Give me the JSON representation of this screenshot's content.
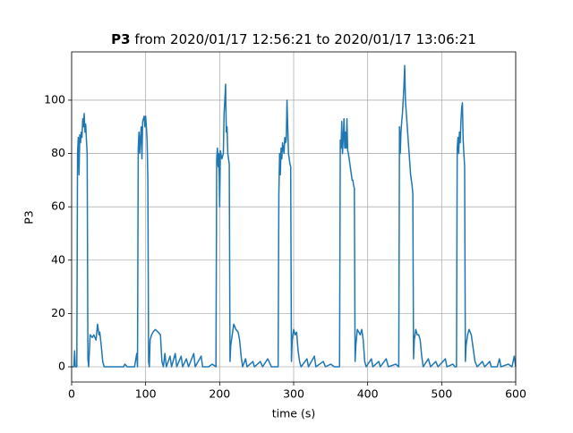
{
  "chart_data": {
    "type": "line",
    "title": [
      "P3",
      "from 2020/01/17 12:56:21 to 2020/01/17 13:06:21"
    ],
    "xlabel": "time (s)",
    "ylabel": "P3",
    "color": "#1f77b4",
    "grid": true,
    "xlim": [
      0,
      600
    ],
    "xticks": [
      0,
      100,
      200,
      300,
      400,
      500,
      600
    ],
    "ylim": [
      -5.7,
      118.1
    ],
    "yticks": [
      0,
      20,
      40,
      60,
      80,
      100
    ],
    "x": [
      0,
      3,
      4,
      5,
      7,
      8,
      9,
      10,
      11,
      12,
      13,
      14,
      15,
      16,
      17,
      18,
      19,
      20,
      21,
      22,
      23,
      25,
      28,
      30,
      33,
      35,
      37,
      38,
      40,
      42,
      44,
      50,
      60,
      70,
      72,
      75,
      85,
      88,
      89,
      90,
      91,
      92,
      93,
      94,
      95,
      96,
      97,
      98,
      99,
      100,
      101,
      102,
      103,
      104,
      105,
      106,
      108,
      110,
      113,
      117,
      120,
      122,
      124,
      126,
      128,
      133,
      135,
      140,
      142,
      148,
      150,
      155,
      158,
      165,
      167,
      175,
      177,
      185,
      190,
      195,
      196,
      197,
      198,
      199,
      200,
      201,
      203,
      205,
      206,
      207,
      208,
      209,
      210,
      211,
      212,
      213,
      214,
      215,
      217,
      219,
      222,
      225,
      227,
      229,
      231,
      235,
      237,
      245,
      247,
      255,
      258,
      265,
      270,
      276,
      279,
      280,
      281,
      282,
      283,
      284,
      285,
      286,
      287,
      288,
      289,
      290,
      291,
      292,
      293,
      294,
      295,
      296,
      297,
      298,
      300,
      302,
      304,
      306,
      308,
      310,
      318,
      320,
      328,
      330,
      340,
      343,
      350,
      355,
      362,
      363,
      364,
      365,
      366,
      367,
      368,
      369,
      370,
      371,
      372,
      373,
      374,
      375,
      376,
      377,
      378,
      379,
      380,
      381,
      382,
      383,
      384,
      386,
      388,
      390,
      392,
      394,
      396,
      398,
      405,
      407,
      415,
      417,
      425,
      428,
      438,
      442,
      443,
      444,
      445,
      446,
      447,
      448,
      449,
      450,
      451,
      452,
      453,
      454,
      455,
      456,
      457,
      458,
      459,
      460,
      461,
      462,
      463,
      465,
      467,
      469,
      471,
      473,
      475,
      482,
      485,
      492,
      495,
      505,
      507,
      515,
      518,
      520,
      521,
      522,
      523,
      524,
      525,
      526,
      527,
      528,
      529,
      530,
      531,
      532,
      533,
      535,
      537,
      540,
      543,
      545,
      548,
      555,
      558,
      565,
      567,
      575,
      578,
      580,
      590,
      595,
      598,
      600
    ],
    "values": [
      0,
      0,
      6,
      0,
      0,
      80,
      86,
      72,
      87,
      84,
      88,
      86,
      93,
      90,
      95,
      88,
      91,
      85,
      80,
      3,
      0,
      12,
      11,
      12,
      10,
      16,
      12,
      13,
      8,
      2,
      0,
      0,
      0,
      0,
      1,
      0,
      0,
      5,
      0,
      82,
      88,
      80,
      86,
      90,
      78,
      92,
      93,
      94,
      90,
      94,
      90,
      85,
      70,
      2,
      0,
      10,
      12,
      13,
      14,
      13,
      12,
      2,
      0,
      5,
      0,
      4,
      0,
      5,
      0,
      4,
      0,
      3,
      0,
      5,
      0,
      4,
      0,
      0,
      1,
      0,
      78,
      82,
      75,
      80,
      60,
      81,
      78,
      80,
      95,
      100,
      106,
      88,
      90,
      80,
      78,
      76,
      2,
      8,
      12,
      16,
      14,
      13,
      10,
      4,
      0,
      3,
      0,
      2,
      0,
      2,
      0,
      3,
      0,
      0,
      0,
      65,
      80,
      72,
      82,
      78,
      84,
      82,
      80,
      86,
      84,
      85,
      100,
      90,
      80,
      78,
      76,
      75,
      2,
      10,
      14,
      12,
      13,
      6,
      2,
      0,
      3,
      0,
      4,
      0,
      2,
      0,
      1,
      0,
      0,
      85,
      82,
      92,
      80,
      86,
      93,
      82,
      88,
      82,
      93,
      81,
      80,
      78,
      76,
      74,
      72,
      70,
      70,
      68,
      67,
      2,
      8,
      14,
      13,
      12,
      14,
      10,
      2,
      0,
      3,
      0,
      2,
      0,
      3,
      0,
      1,
      0,
      90,
      80,
      88,
      92,
      95,
      100,
      105,
      113,
      100,
      96,
      92,
      88,
      84,
      80,
      76,
      72,
      70,
      68,
      65,
      3,
      10,
      14,
      12,
      12,
      10,
      4,
      0,
      3,
      0,
      2,
      0,
      3,
      0,
      1,
      0,
      0,
      82,
      86,
      80,
      88,
      84,
      92,
      97,
      99,
      85,
      80,
      75,
      2,
      8,
      12,
      14,
      12,
      6,
      2,
      0,
      2,
      0,
      2,
      0,
      0,
      3,
      0,
      1,
      0,
      4,
      0
    ]
  }
}
